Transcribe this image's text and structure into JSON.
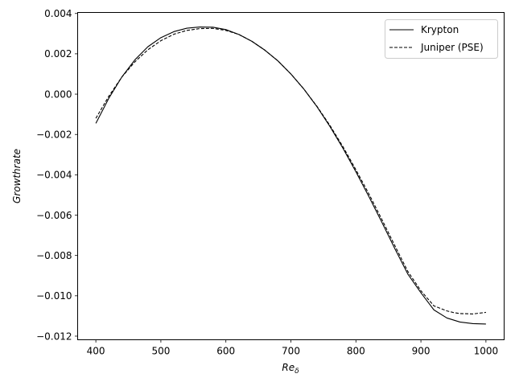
{
  "chart_data": {
    "type": "line",
    "title": "",
    "xlabel_main": "Re",
    "xlabel_sub": "δ",
    "ylabel": "Growthrate",
    "xlim": [
      372,
      1028
    ],
    "ylim": [
      -0.01218,
      0.00405
    ],
    "xticks": [
      400,
      500,
      600,
      700,
      800,
      900,
      1000
    ],
    "xtick_labels": [
      "400",
      "500",
      "600",
      "700",
      "800",
      "900",
      "1000"
    ],
    "yticks": [
      0.004,
      0.002,
      0.0,
      -0.002,
      -0.004,
      -0.006,
      -0.008,
      -0.01,
      -0.012
    ],
    "ytick_labels": [
      "0.004",
      "0.002",
      "0.000",
      "−0.002",
      "−0.004",
      "−0.006",
      "−0.008",
      "−0.010",
      "−0.012"
    ],
    "grid": false,
    "legend_position": "top-right",
    "series": [
      {
        "name": "Krypton",
        "style": "solid",
        "color": "#000000",
        "x": [
          400,
          420,
          440,
          460,
          480,
          500,
          520,
          540,
          560,
          580,
          600,
          620,
          640,
          660,
          680,
          700,
          720,
          740,
          760,
          780,
          800,
          820,
          840,
          860,
          880,
          900,
          920,
          940,
          960,
          980,
          1000
        ],
        "y": [
          -0.00145,
          -0.0002,
          0.00085,
          0.0017,
          0.00235,
          0.0028,
          0.0031,
          0.00327,
          0.00333,
          0.00332,
          0.0032,
          0.00296,
          0.00262,
          0.00218,
          0.00165,
          0.001,
          0.00025,
          -0.00062,
          -0.0016,
          -0.00268,
          -0.00385,
          -0.00508,
          -0.00636,
          -0.00767,
          -0.00893,
          -0.00985,
          -0.0107,
          -0.0111,
          -0.0113,
          -0.01138,
          -0.0114
        ]
      },
      {
        "name": "Juniper (PSE)",
        "style": "dashed",
        "color": "#000000",
        "x": [
          400,
          420,
          440,
          460,
          480,
          500,
          520,
          540,
          560,
          580,
          600,
          620,
          640,
          660,
          680,
          700,
          720,
          740,
          760,
          780,
          800,
          820,
          840,
          860,
          880,
          900,
          920,
          940,
          950,
          960,
          980,
          1000
        ],
        "y": [
          -0.0012,
          -0.0001,
          0.00085,
          0.0016,
          0.0022,
          0.00265,
          0.00297,
          0.00316,
          0.00325,
          0.00326,
          0.00316,
          0.00296,
          0.00262,
          0.00218,
          0.00165,
          0.001,
          0.00025,
          -0.0006,
          -0.00155,
          -0.0026,
          -0.00375,
          -0.00495,
          -0.00622,
          -0.00752,
          -0.0088,
          -0.00975,
          -0.0105,
          -0.01075,
          -0.01083,
          -0.01088,
          -0.0109,
          -0.01082
        ]
      }
    ]
  }
}
